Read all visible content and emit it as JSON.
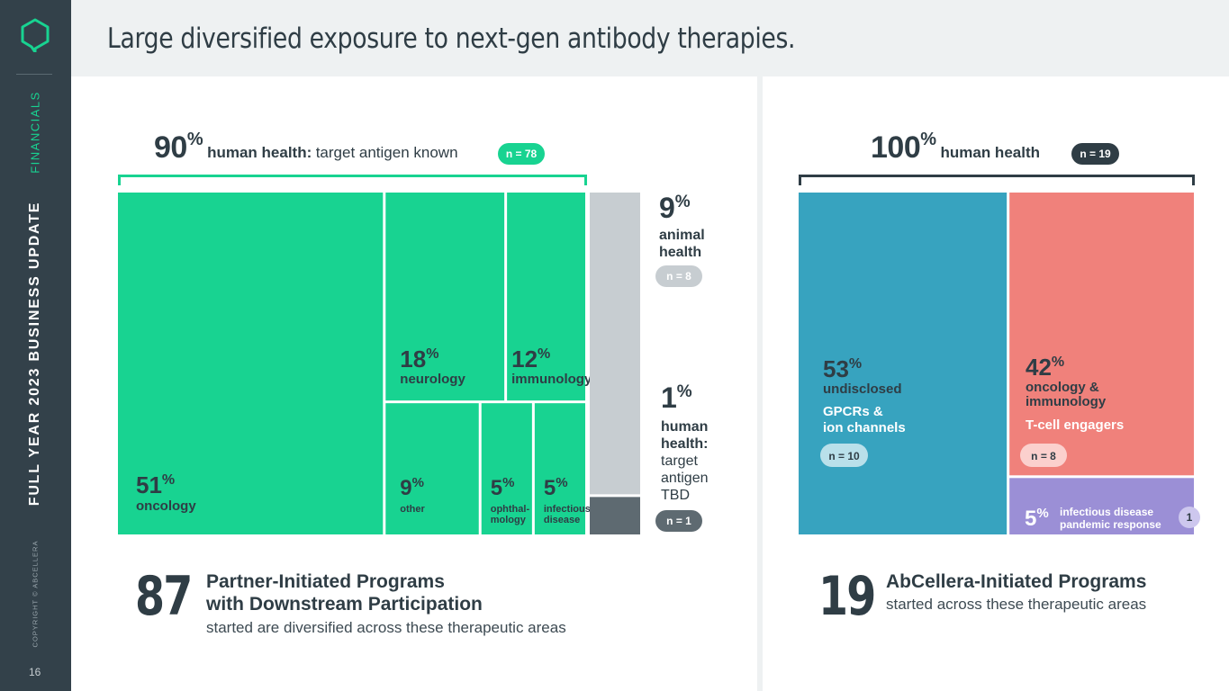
{
  "sidebar": {
    "section": "FINANCIALS",
    "deck_title": "FULL YEAR 2023 BUSINESS UPDATE",
    "copyright": "COPYRIGHT © ABCELLERA",
    "page_number": "16",
    "logo_icon": "hexagon-chat-logo-icon"
  },
  "header": {
    "title": "Large diversified exposure to next-gen antibody therapies."
  },
  "colors": {
    "green": "#18d391",
    "gray_light": "#c7cdd1",
    "gray_dark": "#5e6a71",
    "blue": "#37a3bf",
    "coral": "#f0817b",
    "purple": "#9b8fd6",
    "navy": "#2f3d45"
  },
  "left": {
    "top_label": {
      "pct": "90",
      "pct_sym": "%",
      "strong": "human health:",
      "rest": "target antigen known",
      "n": "n = 78"
    },
    "animal": {
      "pct": "9",
      "pct_sym": "%",
      "line1": "animal",
      "line2": "health",
      "n": "n = 8"
    },
    "tbd": {
      "pct": "1",
      "pct_sym": "%",
      "line1": "human",
      "line2": "health:",
      "line3": "target",
      "line4": "antigen",
      "line5": "TBD",
      "n": "n = 1"
    },
    "stat": {
      "number": "87",
      "title_line1": "Partner-Initiated Programs",
      "title_line2": "with Downstream Participation",
      "sub": "started are diversified across these therapeutic areas"
    }
  },
  "right": {
    "top_label": {
      "pct": "100",
      "pct_sym": "%",
      "strong": "human health",
      "n": "n = 19"
    },
    "stat": {
      "number": "19",
      "title": "AbCellera-Initiated Programs",
      "sub": "started across these therapeutic areas"
    }
  },
  "chart_data": [
    {
      "type": "treemap",
      "title": "Partner-Initiated Programs by therapeutic area",
      "units": "percent of programs",
      "total_n": 87,
      "groups": [
        {
          "name": "human health: target antigen known",
          "value": 90,
          "n": 78,
          "children": [
            {
              "label": "oncology",
              "value": 51
            },
            {
              "label": "neurology",
              "value": 18
            },
            {
              "label": "immunology",
              "value": 12
            },
            {
              "label": "other",
              "value": 9
            },
            {
              "label": "ophthal-mology",
              "label_lines": [
                "ophthal-",
                "mology"
              ],
              "value": 5
            },
            {
              "label": "infectious disease",
              "label_lines": [
                "infectious",
                "disease"
              ],
              "value": 5
            }
          ]
        },
        {
          "name": "animal health",
          "value": 9,
          "n": 8
        },
        {
          "name": "human health: target antigen TBD",
          "value": 1,
          "n": 1
        }
      ]
    },
    {
      "type": "treemap",
      "title": "AbCellera-Initiated Programs by therapeutic area",
      "units": "percent of programs",
      "total_n": 19,
      "groups": [
        {
          "name": "human health",
          "value": 100,
          "n": 19,
          "children": [
            {
              "label": "undisclosed",
              "sub": "GPCRs & ion channels",
              "sub_lines": [
                "GPCRs &",
                "ion channels"
              ],
              "value": 53,
              "n": "n = 10"
            },
            {
              "label": "oncology & immunology",
              "label_lines": [
                "oncology &",
                "immunology"
              ],
              "sub": "T-cell engagers",
              "value": 42,
              "n": "n = 8"
            },
            {
              "label": "infectious disease",
              "sub": "pandemic response",
              "value": 5,
              "n": "1"
            }
          ]
        }
      ]
    }
  ]
}
